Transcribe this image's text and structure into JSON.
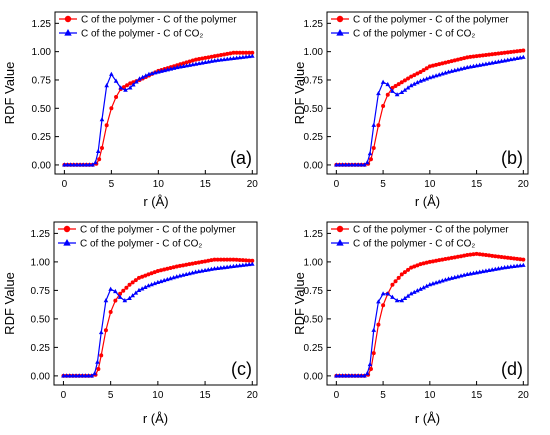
{
  "chart_data": [
    {
      "type": "line",
      "panel_label": "(a)",
      "xlabel": "r (Å)",
      "ylabel": "RDF Value",
      "xlim": [
        -1,
        20.5
      ],
      "ylim": [
        -0.08,
        1.35
      ],
      "x_ticks": [
        "0",
        "5",
        "10",
        "15",
        "20"
      ],
      "y_ticks": [
        "0.00",
        "0.25",
        "0.50",
        "0.75",
        "1.00",
        "1.25"
      ],
      "legend_position": "top-left",
      "series": [
        {
          "name": "C of the polymer - C of the polymer",
          "color": "#ff0000",
          "marker": "circle",
          "points": [
            [
              0,
              0
            ],
            [
              2,
              0
            ],
            [
              3,
              0
            ],
            [
              3.4,
              0.01
            ],
            [
              3.7,
              0.05
            ],
            [
              4,
              0.15
            ],
            [
              4.5,
              0.35
            ],
            [
              5,
              0.5
            ],
            [
              5.5,
              0.6
            ],
            [
              6,
              0.67
            ],
            [
              7,
              0.72
            ],
            [
              8,
              0.75
            ],
            [
              9,
              0.79
            ],
            [
              10,
              0.83
            ],
            [
              12,
              0.88
            ],
            [
              14,
              0.93
            ],
            [
              16,
              0.96
            ],
            [
              18,
              0.99
            ],
            [
              20,
              0.99
            ]
          ]
        },
        {
          "name": "C of the polymer - C of CO₂",
          "color": "#0000ff",
          "marker": "triangle",
          "points": [
            [
              0,
              0
            ],
            [
              2,
              0
            ],
            [
              3,
              0
            ],
            [
              3.3,
              0.02
            ],
            [
              3.6,
              0.12
            ],
            [
              4,
              0.4
            ],
            [
              4.5,
              0.7
            ],
            [
              5,
              0.8
            ],
            [
              5.5,
              0.74
            ],
            [
              6,
              0.68
            ],
            [
              6.5,
              0.66
            ],
            [
              7,
              0.68
            ],
            [
              8,
              0.76
            ],
            [
              9,
              0.8
            ],
            [
              10,
              0.82
            ],
            [
              12,
              0.86
            ],
            [
              14,
              0.89
            ],
            [
              16,
              0.92
            ],
            [
              18,
              0.94
            ],
            [
              20,
              0.96
            ]
          ]
        }
      ]
    },
    {
      "type": "line",
      "panel_label": "(b)",
      "xlabel": "r (Å)",
      "ylabel": "RDF Value",
      "xlim": [
        -1,
        20.5
      ],
      "ylim": [
        -0.08,
        1.35
      ],
      "x_ticks": [
        "0",
        "5",
        "10",
        "15",
        "20"
      ],
      "y_ticks": [
        "0.00",
        "0.25",
        "0.50",
        "0.75",
        "1.00",
        "1.25"
      ],
      "legend_position": "top-left",
      "series": [
        {
          "name": "C of the polymer - C of the polymer",
          "color": "#ff0000",
          "marker": "circle",
          "points": [
            [
              0,
              0
            ],
            [
              2,
              0
            ],
            [
              3,
              0
            ],
            [
              3.4,
              0.01
            ],
            [
              3.7,
              0.05
            ],
            [
              4,
              0.15
            ],
            [
              4.5,
              0.35
            ],
            [
              5,
              0.52
            ],
            [
              5.5,
              0.62
            ],
            [
              6,
              0.68
            ],
            [
              7,
              0.73
            ],
            [
              8,
              0.78
            ],
            [
              9,
              0.82
            ],
            [
              10,
              0.87
            ],
            [
              12,
              0.91
            ],
            [
              14,
              0.95
            ],
            [
              16,
              0.97
            ],
            [
              18,
              0.99
            ],
            [
              20,
              1.01
            ]
          ]
        },
        {
          "name": "C of the polymer - C of CO₂",
          "color": "#0000ff",
          "marker": "triangle",
          "points": [
            [
              0,
              0
            ],
            [
              2,
              0
            ],
            [
              3,
              0
            ],
            [
              3.3,
              0.02
            ],
            [
              3.6,
              0.1
            ],
            [
              4,
              0.35
            ],
            [
              4.5,
              0.63
            ],
            [
              5,
              0.73
            ],
            [
              5.5,
              0.71
            ],
            [
              6,
              0.65
            ],
            [
              6.5,
              0.62
            ],
            [
              7,
              0.64
            ],
            [
              8,
              0.7
            ],
            [
              9,
              0.74
            ],
            [
              10,
              0.77
            ],
            [
              12,
              0.82
            ],
            [
              14,
              0.86
            ],
            [
              16,
              0.89
            ],
            [
              18,
              0.92
            ],
            [
              20,
              0.95
            ]
          ]
        }
      ]
    },
    {
      "type": "line",
      "panel_label": "(c)",
      "xlabel": "r (Å)",
      "ylabel": "RDF Value",
      "xlim": [
        -1,
        20.5
      ],
      "ylim": [
        -0.08,
        1.35
      ],
      "x_ticks": [
        "0",
        "5",
        "10",
        "15",
        "20"
      ],
      "y_ticks": [
        "0.00",
        "0.25",
        "0.50",
        "0.75",
        "1.00",
        "1.25"
      ],
      "legend_position": "top-left",
      "series": [
        {
          "name": "C of the polymer - C of the polymer",
          "color": "#ff0000",
          "marker": "circle",
          "points": [
            [
              0,
              0
            ],
            [
              2,
              0
            ],
            [
              3,
              0
            ],
            [
              3.4,
              0.01
            ],
            [
              3.7,
              0.06
            ],
            [
              4,
              0.18
            ],
            [
              4.5,
              0.4
            ],
            [
              5,
              0.56
            ],
            [
              5.5,
              0.66
            ],
            [
              6,
              0.72
            ],
            [
              7,
              0.8
            ],
            [
              8,
              0.86
            ],
            [
              9,
              0.89
            ],
            [
              10,
              0.92
            ],
            [
              12,
              0.96
            ],
            [
              14,
              0.99
            ],
            [
              16,
              1.02
            ],
            [
              18,
              1.02
            ],
            [
              20,
              1.01
            ]
          ]
        },
        {
          "name": "C of the polymer - C of CO₂",
          "color": "#0000ff",
          "marker": "triangle",
          "points": [
            [
              0,
              0
            ],
            [
              2,
              0
            ],
            [
              3,
              0
            ],
            [
              3.3,
              0.02
            ],
            [
              3.6,
              0.12
            ],
            [
              4,
              0.38
            ],
            [
              4.5,
              0.66
            ],
            [
              5,
              0.76
            ],
            [
              5.5,
              0.74
            ],
            [
              6,
              0.69
            ],
            [
              6.5,
              0.66
            ],
            [
              7,
              0.68
            ],
            [
              8,
              0.75
            ],
            [
              9,
              0.79
            ],
            [
              10,
              0.82
            ],
            [
              12,
              0.87
            ],
            [
              14,
              0.91
            ],
            [
              16,
              0.94
            ],
            [
              18,
              0.96
            ],
            [
              20,
              0.98
            ]
          ]
        }
      ]
    },
    {
      "type": "line",
      "panel_label": "(d)",
      "xlabel": "r (Å)",
      "ylabel": "RDF Value",
      "xlim": [
        -1,
        20.5
      ],
      "ylim": [
        -0.08,
        1.35
      ],
      "x_ticks": [
        "0",
        "5",
        "10",
        "15",
        "20"
      ],
      "y_ticks": [
        "0.00",
        "0.25",
        "0.50",
        "0.75",
        "1.00",
        "1.25"
      ],
      "legend_position": "top-left",
      "series": [
        {
          "name": "C of the polymer - C of the polymer",
          "color": "#ff0000",
          "marker": "circle",
          "points": [
            [
              0,
              0
            ],
            [
              2,
              0
            ],
            [
              3,
              0
            ],
            [
              3.4,
              0.01
            ],
            [
              3.7,
              0.06
            ],
            [
              4,
              0.2
            ],
            [
              4.5,
              0.45
            ],
            [
              5,
              0.62
            ],
            [
              5.5,
              0.72
            ],
            [
              6,
              0.8
            ],
            [
              7,
              0.89
            ],
            [
              8,
              0.95
            ],
            [
              9,
              0.98
            ],
            [
              10,
              1.0
            ],
            [
              12,
              1.03
            ],
            [
              14,
              1.06
            ],
            [
              15,
              1.07
            ],
            [
              16,
              1.06
            ],
            [
              18,
              1.04
            ],
            [
              20,
              1.02
            ]
          ]
        },
        {
          "name": "C of the polymer - C of CO₂",
          "color": "#0000ff",
          "marker": "triangle",
          "points": [
            [
              0,
              0
            ],
            [
              2,
              0
            ],
            [
              3,
              0
            ],
            [
              3.3,
              0.02
            ],
            [
              3.6,
              0.1
            ],
            [
              4,
              0.4
            ],
            [
              4.5,
              0.65
            ],
            [
              5,
              0.72
            ],
            [
              5.5,
              0.72
            ],
            [
              6,
              0.69
            ],
            [
              6.5,
              0.66
            ],
            [
              7,
              0.66
            ],
            [
              8,
              0.72
            ],
            [
              9,
              0.76
            ],
            [
              10,
              0.8
            ],
            [
              12,
              0.85
            ],
            [
              14,
              0.89
            ],
            [
              16,
              0.92
            ],
            [
              18,
              0.95
            ],
            [
              20,
              0.97
            ]
          ]
        }
      ]
    }
  ]
}
